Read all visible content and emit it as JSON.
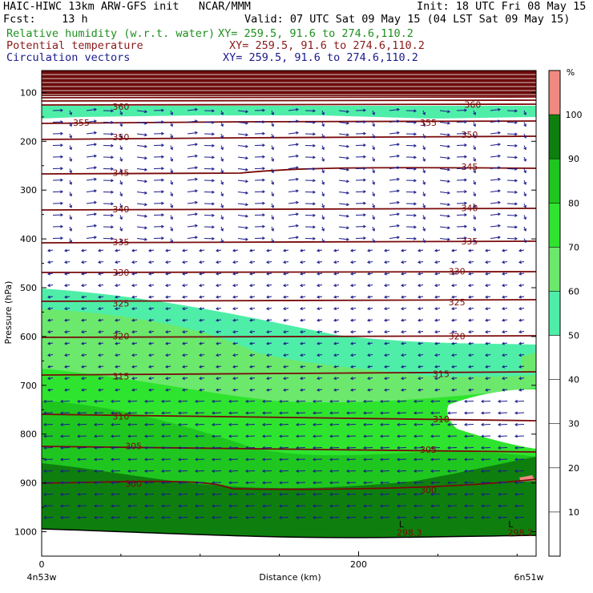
{
  "header": {
    "line1_left": "HAIC-HIWC 13km ARW-GFS init   NCAR/MMM",
    "line1_right": "Init: 18 UTC Fri 08 May 15",
    "fcst_label": "Fcst:    13 h",
    "valid": "Valid: 07 UTC Sat 09 May 15 (04 LST Sat 09 May 15)",
    "field1_name": "Relative humidity (w.r.t. water)",
    "field1_xy": "XY= 259.5, 91.6 to 274.6,110.2",
    "field2_name": "Potential temperature",
    "field2_xy": "XY= 259.5, 91.6 to 274.6,110.2",
    "field3_name": "Circulation vectors",
    "field3_xy": "XY= 259.5, 91.6 to 274.6,110.2"
  },
  "colors": {
    "rh_50": "#4eeea8",
    "rh_60": "#6ce86c",
    "rh_70": "#2fe42f",
    "rh_80": "#1fc61f",
    "rh_90": "#0e7f0e",
    "rh_100": "#f08a80",
    "theta": "#7a0a0a",
    "vectors": "#1b1b8c",
    "top_band": "#6b0a0a"
  },
  "chart_data": {
    "type": "cross-section",
    "ylabel": "Pressure (hPa)",
    "xlabel": "Distance (km)",
    "x_left_label": "4n53w",
    "x_right_label": "6n51w",
    "xlim": [
      0,
      312
    ],
    "ylim": [
      1050,
      55
    ],
    "x_ticks": [
      0,
      200
    ],
    "y_ticks": [
      100,
      200,
      300,
      400,
      500,
      600,
      700,
      800,
      900,
      1000
    ],
    "colorbar": {
      "unit": "%",
      "levels": [
        10,
        20,
        30,
        40,
        50,
        60,
        70,
        80,
        90,
        100
      ],
      "colored_bins": [
        {
          "from": 50,
          "to": 60,
          "color": "#4eeea8"
        },
        {
          "from": 60,
          "to": 70,
          "color": "#6ce86c"
        },
        {
          "from": 70,
          "to": 80,
          "color": "#2fe42f"
        },
        {
          "from": 80,
          "to": 90,
          "color": "#1fc61f"
        },
        {
          "from": 90,
          "to": 100,
          "color": "#0e7f0e"
        },
        {
          "from": 100,
          "to": 110,
          "color": "#f08a80"
        }
      ]
    },
    "theta_labels": [
      {
        "text": "360",
        "x": 50,
        "p": 127
      },
      {
        "text": "360",
        "x": 272,
        "p": 123
      },
      {
        "text": "355",
        "x": 25,
        "p": 160
      },
      {
        "text": "355",
        "x": 244,
        "p": 160
      },
      {
        "text": "350",
        "x": 50,
        "p": 190
      },
      {
        "text": "350",
        "x": 270,
        "p": 185
      },
      {
        "text": "345",
        "x": 50,
        "p": 263
      },
      {
        "text": "345",
        "x": 270,
        "p": 250
      },
      {
        "text": "340",
        "x": 50,
        "p": 337
      },
      {
        "text": "340",
        "x": 270,
        "p": 335
      },
      {
        "text": "335",
        "x": 50,
        "p": 405
      },
      {
        "text": "335",
        "x": 270,
        "p": 403
      },
      {
        "text": "330",
        "x": 50,
        "p": 467
      },
      {
        "text": "330",
        "x": 262,
        "p": 465
      },
      {
        "text": "325",
        "x": 50,
        "p": 530
      },
      {
        "text": "325",
        "x": 262,
        "p": 528
      },
      {
        "text": "320",
        "x": 50,
        "p": 598
      },
      {
        "text": "320",
        "x": 262,
        "p": 598
      },
      {
        "text": "315",
        "x": 50,
        "p": 680
      },
      {
        "text": "315",
        "x": 252,
        "p": 675
      },
      {
        "text": "310",
        "x": 50,
        "p": 762
      },
      {
        "text": "310",
        "x": 252,
        "p": 768
      },
      {
        "text": "305",
        "x": 58,
        "p": 823
      },
      {
        "text": "305",
        "x": 244,
        "p": 830
      },
      {
        "text": "300",
        "x": 58,
        "p": 900
      },
      {
        "text": "300",
        "x": 244,
        "p": 913
      },
      {
        "text": "298.3",
        "x": 232,
        "p": 1000
      },
      {
        "text": "298.2",
        "x": 302,
        "p": 1000
      }
    ],
    "annotations": [
      {
        "text": "L",
        "x": 227,
        "p": 983
      },
      {
        "text": "L",
        "x": 296,
        "p": 983
      }
    ]
  }
}
